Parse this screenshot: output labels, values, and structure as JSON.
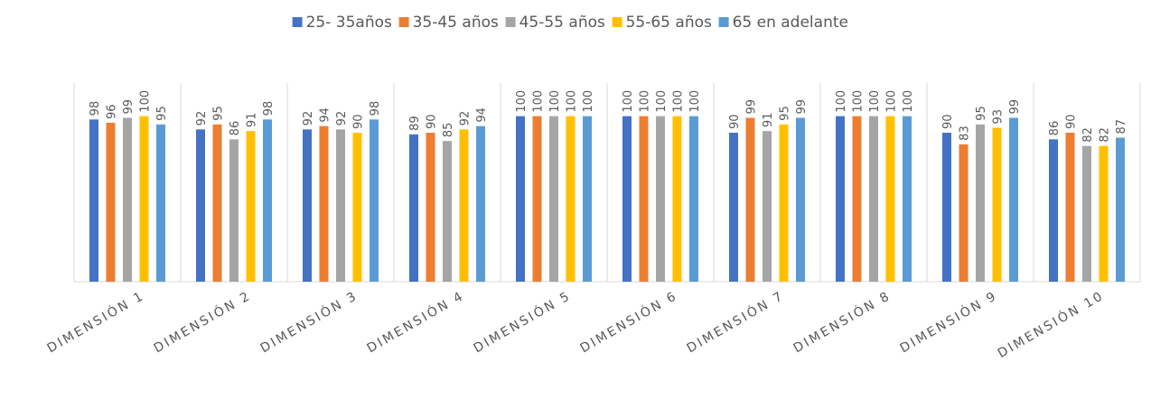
{
  "chart_data": {
    "type": "bar",
    "categories": [
      "DIMENSIÓN 1",
      "DIMENSIÓN 2",
      "DIMENSIÓN 3",
      "DIMENSIÓN 4",
      "DIMENSIÓN 5",
      "DIMENSIÓN 6",
      "DIMENSIÓN 7",
      "DIMENSIÓN 8",
      "DIMENSIÓN 9",
      "DIMENSIÓN 10"
    ],
    "series": [
      {
        "name": "25- 35años",
        "color": "#4472c4",
        "values": [
          98,
          92,
          92,
          89,
          100,
          100,
          90,
          100,
          90,
          86
        ]
      },
      {
        "name": "35-45 años",
        "color": "#ed7d31",
        "values": [
          96,
          95,
          94,
          90,
          100,
          100,
          99,
          100,
          83,
          90
        ]
      },
      {
        "name": "45-55 años",
        "color": "#a5a5a5",
        "values": [
          99,
          86,
          92,
          85,
          100,
          100,
          91,
          100,
          95,
          82
        ]
      },
      {
        "name": "55-65 años",
        "color": "#ffc000",
        "values": [
          100,
          91,
          90,
          92,
          100,
          100,
          95,
          100,
          93,
          82
        ]
      },
      {
        "name": "65 en adelante",
        "color": "#5b9bd5",
        "values": [
          95,
          98,
          98,
          94,
          100,
          100,
          99,
          100,
          99,
          87
        ]
      }
    ],
    "ylim": [
      0,
      120
    ],
    "legend": "top"
  }
}
